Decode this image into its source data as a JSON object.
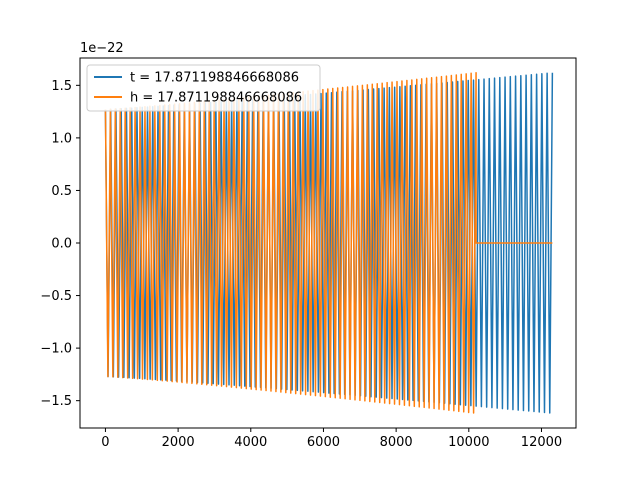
{
  "chart_data": {
    "type": "line",
    "title": "",
    "xlabel": "",
    "ylabel": "",
    "y_offset_label": "1e−22",
    "xlim": [
      -700,
      12950
    ],
    "ylim": [
      -1.76,
      1.76
    ],
    "x_ticks": [
      0,
      2000,
      4000,
      6000,
      8000,
      10000,
      12000
    ],
    "x_tick_labels": [
      "0",
      "2000",
      "4000",
      "6000",
      "8000",
      "10000",
      "12000"
    ],
    "y_ticks": [
      -1.5,
      -1.0,
      -0.5,
      0.0,
      0.5,
      1.0,
      1.5
    ],
    "y_tick_labels": [
      "−1.5",
      "−1.0",
      "−0.5",
      "0.0",
      "0.5",
      "1.0",
      "1.5"
    ],
    "grid": false,
    "legend_position": "upper-left",
    "series": [
      {
        "name": "t = 17.871198846668086",
        "color": "#1f77b4",
        "x_start": 0,
        "x_end": 12300,
        "amplitude_start": 1.27,
        "amplitude_end": 1.62,
        "cycles": 170,
        "zero_tail_from": null
      },
      {
        "name": "h = 17.871198846668086",
        "color": "#ff7f0e",
        "x_start": 0,
        "x_end": 10200,
        "amplitude_start": 1.27,
        "amplitude_end": 1.62,
        "cycles": 150,
        "zero_tail_from": 10200,
        "zero_tail_to": 12300
      }
    ]
  }
}
